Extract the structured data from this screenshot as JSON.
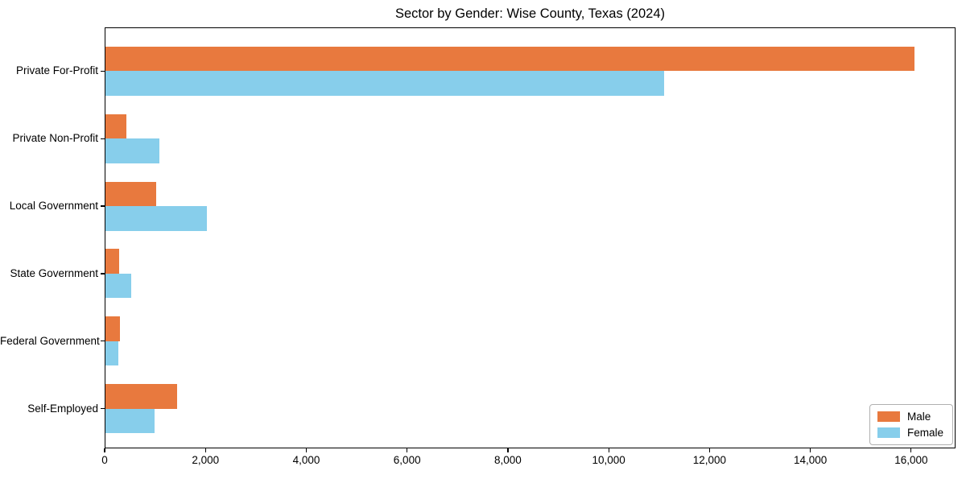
{
  "title": "Sector by Gender: Wise County, Texas (2024)",
  "chart_data": {
    "type": "bar",
    "orientation": "horizontal",
    "title": "Sector by Gender: Wise County, Texas (2024)",
    "categories": [
      "Private For-Profit",
      "Private Non-Profit",
      "Local Government",
      "State Government",
      "Federal Government",
      "Self-Employed"
    ],
    "series": [
      {
        "name": "Male",
        "color": "#e8793e",
        "values": [
          16070,
          430,
          1015,
          285,
          305,
          1445
        ]
      },
      {
        "name": "Female",
        "color": "#87ceeb",
        "values": [
          11100,
          1080,
          2025,
          530,
          265,
          985
        ]
      }
    ],
    "xlabel": "",
    "ylabel": "",
    "xlim": [
      0,
      16880
    ],
    "xticks": [
      0,
      2000,
      4000,
      6000,
      8000,
      10000,
      12000,
      14000,
      16000
    ],
    "xtick_labels": [
      "0",
      "2,000",
      "4,000",
      "6,000",
      "8,000",
      "10,000",
      "12,000",
      "14,000",
      "16,000"
    ],
    "grid": false,
    "legend_position": "lower right",
    "background_color": "#ffffff",
    "spine_color": "#000000"
  }
}
